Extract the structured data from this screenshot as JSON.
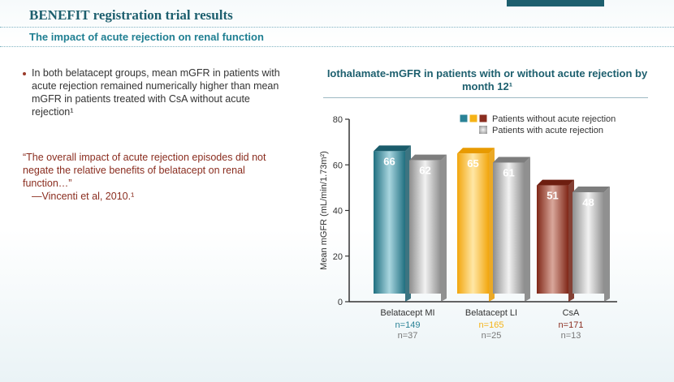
{
  "header": {
    "title": "BENEFIT registration trial results",
    "subtitle": "The impact of acute rejection on renal function"
  },
  "bullet": "In both belatacept groups, mean mGFR in patients with acute rejection remained numerically higher than mean mGFR in patients treated with CsA without acute rejection¹",
  "quote": {
    "text": "“The overall impact of acute rejection episodes did not negate the relative benefits of belatacept on renal function…”",
    "cite": "—Vincenti et al, 2010.¹"
  },
  "colors": {
    "title": "#1d5f6e",
    "mi": "#2a8296",
    "li": "#f5b317",
    "csa": "#8a2d1f",
    "gray": "#9b9b9b",
    "n_gray": "#777777"
  },
  "chart_data": {
    "type": "bar",
    "title": "Iothalamate-mGFR in patients with or without acute rejection by month 12¹",
    "ylabel": "Mean mGFR (mL/min/1.73m²)",
    "ylim": [
      0,
      80
    ],
    "yticks": [
      0,
      20,
      40,
      60,
      80
    ],
    "categories": [
      "Belatacept MI",
      "Belatacept LI",
      "CsA"
    ],
    "series": [
      {
        "name": "Patients without acute rejection",
        "values": [
          66,
          65,
          51
        ]
      },
      {
        "name": "Patients with acute rejection",
        "values": [
          62,
          61,
          48
        ]
      }
    ],
    "n_without": [
      "n=149",
      "n=165",
      "n=171"
    ],
    "n_with": [
      "n=37",
      "n=25",
      "n=13"
    ],
    "legend_position": "top-right"
  }
}
